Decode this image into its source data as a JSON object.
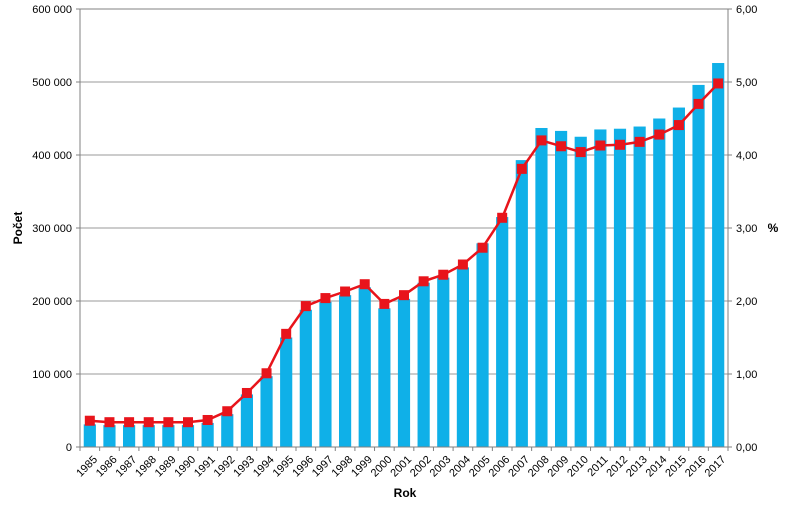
{
  "chart_data": {
    "type": "bar+line",
    "title": "",
    "xlabel": "Rok",
    "ylabel_left": "Počet",
    "ylabel_right": "%",
    "ylim_left": [
      0,
      600000
    ],
    "ylim_right": [
      0,
      6
    ],
    "left_ticks": [
      "0",
      "100 000",
      "200 000",
      "300 000",
      "400 000",
      "500 000",
      "600 000"
    ],
    "right_ticks": [
      "0,00",
      "1,00",
      "2,00",
      "3,00",
      "4,00",
      "5,00",
      "6,00"
    ],
    "grid": true,
    "legend": "none",
    "categories": [
      "1985",
      "1986",
      "1987",
      "1988",
      "1989",
      "1990",
      "1991",
      "1992",
      "1993",
      "1994",
      "1995",
      "1996",
      "1997",
      "1998",
      "1999",
      "2000",
      "2001",
      "2002",
      "2003",
      "2004",
      "2005",
      "2006",
      "2007",
      "2008",
      "2009",
      "2010",
      "2011",
      "2012",
      "2013",
      "2014",
      "2015",
      "2016",
      "2017"
    ],
    "series": [
      {
        "axis": "left",
        "kind": "bar",
        "color": "#0fb0e8",
        "values": [
          31000,
          30000,
          30000,
          30000,
          30000,
          30000,
          33000,
          45000,
          72000,
          97000,
          150000,
          188000,
          199000,
          208000,
          219000,
          190000,
          203000,
          225000,
          232000,
          246000,
          279000,
          315000,
          393000,
          437000,
          433000,
          425000,
          435000,
          436000,
          439000,
          450000,
          465000,
          496000,
          526000
        ]
      },
      {
        "axis": "right",
        "kind": "line",
        "color": "#e8141b",
        "marker_color": "#e8141b",
        "values": [
          0.36,
          0.34,
          0.34,
          0.34,
          0.34,
          0.34,
          0.37,
          0.49,
          0.74,
          1.01,
          1.55,
          1.93,
          2.04,
          2.13,
          2.23,
          1.96,
          2.08,
          2.27,
          2.36,
          2.5,
          2.73,
          3.14,
          3.81,
          4.2,
          4.12,
          4.04,
          4.13,
          4.14,
          4.18,
          4.28,
          4.41,
          4.7,
          4.98
        ]
      }
    ]
  }
}
